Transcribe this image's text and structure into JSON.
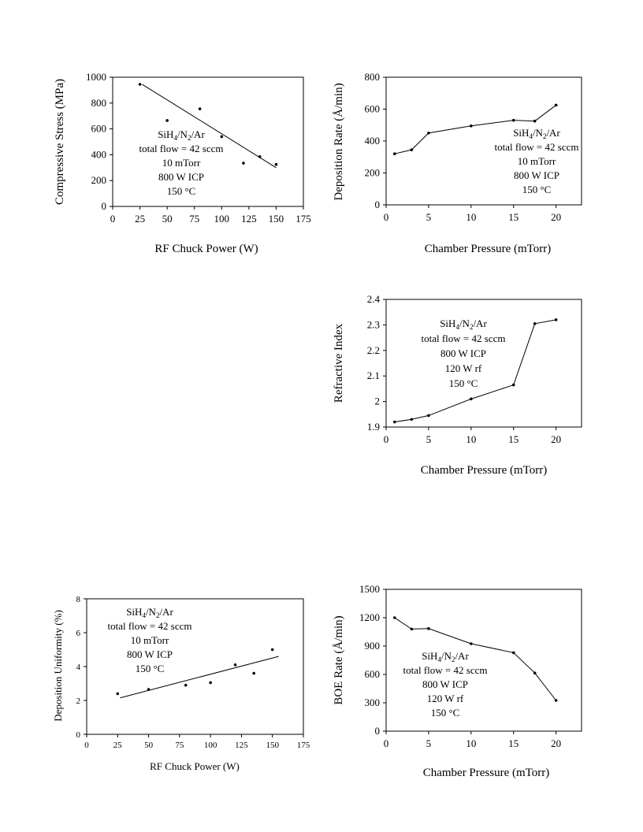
{
  "chart_data": [
    {
      "id": "c1",
      "type": "scatter",
      "xlabel": "RF Chuck Power (W)",
      "ylabel": "Compressive Stress (MPa)",
      "xlim": [
        0,
        175
      ],
      "ylim": [
        0,
        1000
      ],
      "xticks": [
        0,
        25,
        50,
        75,
        100,
        125,
        150,
        175
      ],
      "yticks": [
        0,
        200,
        400,
        600,
        800,
        1000
      ],
      "series": [
        {
          "values": [
            [
              25,
              945
            ],
            [
              50,
              665
            ],
            [
              80,
              755
            ],
            [
              100,
              540
            ],
            [
              120,
              335
            ],
            [
              135,
              385
            ],
            [
              150,
              325
            ]
          ],
          "connect": false
        }
      ],
      "trendline": [
        [
          27,
          945
        ],
        [
          150,
          300
        ]
      ],
      "annotation": {
        "species": [
          "SiH",
          "4",
          "/N",
          "2",
          "/Ar"
        ],
        "lines": [
          "total flow = 42 sccm",
          "10 mTorr",
          "800 W ICP",
          "150 °C"
        ]
      }
    },
    {
      "id": "c2",
      "type": "line",
      "xlabel": "Chamber Pressure (mTorr)",
      "ylabel": "Deposition Rate (Å/min)",
      "xlim": [
        0,
        23
      ],
      "ylim": [
        0,
        800
      ],
      "xticks": [
        0,
        5,
        10,
        15,
        20
      ],
      "yticks": [
        0,
        200,
        400,
        600,
        800
      ],
      "series": [
        {
          "values": [
            [
              1,
              320
            ],
            [
              3,
              345
            ],
            [
              5,
              450
            ],
            [
              10,
              495
            ],
            [
              15,
              530
            ],
            [
              17.5,
              525
            ],
            [
              20,
              625
            ]
          ],
          "connect": true
        }
      ],
      "annotation": {
        "species": [
          "SiH",
          "4",
          "/N",
          "2",
          "/Ar"
        ],
        "lines": [
          "total flow = 42 sccm",
          "10 mTorr",
          "800 W ICP",
          "150 °C"
        ]
      }
    },
    {
      "id": "c3",
      "type": "line",
      "xlabel": "Chamber Pressure (mTorr)",
      "ylabel": "Refractive Index",
      "xlim": [
        0,
        23
      ],
      "ylim": [
        1.9,
        2.4
      ],
      "xticks": [
        0,
        5,
        10,
        15,
        20
      ],
      "yticks": [
        1.9,
        2,
        2.1,
        2.2,
        2.3,
        2.4
      ],
      "ytick_labels": [
        "1.9",
        "2",
        "2.1",
        "2.2",
        "2.3",
        "2.4"
      ],
      "series": [
        {
          "values": [
            [
              1,
              1.92
            ],
            [
              3,
              1.93
            ],
            [
              5,
              1.945
            ],
            [
              10,
              2.01
            ],
            [
              15,
              2.065
            ],
            [
              17.5,
              2.305
            ],
            [
              20,
              2.32
            ]
          ],
          "connect": true
        }
      ],
      "annotation": {
        "species": [
          "SiH",
          "4",
          "/N",
          "2",
          "/Ar"
        ],
        "lines": [
          "total flow = 42 sccm",
          "800 W ICP",
          "120 W rf",
          "150 °C"
        ]
      }
    },
    {
      "id": "c4",
      "type": "scatter",
      "xlabel": "RF Chuck Power (W)",
      "ylabel": "Deposition Uniformity (%)",
      "xlim": [
        0,
        175
      ],
      "ylim": [
        0,
        8
      ],
      "xticks": [
        0,
        25,
        50,
        75,
        100,
        125,
        150,
        175
      ],
      "yticks": [
        0,
        2,
        4,
        6,
        8
      ],
      "series": [
        {
          "values": [
            [
              25,
              2.4
            ],
            [
              50,
              2.65
            ],
            [
              80,
              2.9
            ],
            [
              100,
              3.05
            ],
            [
              120,
              4.1
            ],
            [
              135,
              3.6
            ],
            [
              150,
              5.0
            ]
          ],
          "connect": false
        }
      ],
      "trendline": [
        [
          27,
          2.15
        ],
        [
          155,
          4.6
        ]
      ],
      "annotation": {
        "species": [
          "SiH",
          "4",
          "/N",
          "2",
          "/Ar"
        ],
        "lines": [
          "total flow = 42 sccm",
          "10 mTorr",
          "800 W ICP",
          "150 °C"
        ]
      }
    },
    {
      "id": "c5",
      "type": "line",
      "xlabel": "Chamber Pressure (mTorr)",
      "ylabel": "BOE Rate (Å/min)",
      "xlim": [
        0,
        23
      ],
      "ylim": [
        0,
        1500
      ],
      "xticks": [
        0,
        5,
        10,
        15,
        20
      ],
      "yticks": [
        0,
        300,
        600,
        900,
        1200,
        1500
      ],
      "series": [
        {
          "values": [
            [
              1,
              1200
            ],
            [
              3,
              1080
            ],
            [
              5,
              1085
            ],
            [
              10,
              925
            ],
            [
              15,
              830
            ],
            [
              17.5,
              615
            ],
            [
              20,
              325
            ]
          ],
          "connect": true
        }
      ],
      "annotation": {
        "species": [
          "SiH",
          "4",
          "/N",
          "2",
          "/Ar"
        ],
        "lines": [
          "total flow = 42 sccm",
          "800 W ICP",
          "120 W rf",
          "150 °C"
        ]
      }
    }
  ]
}
